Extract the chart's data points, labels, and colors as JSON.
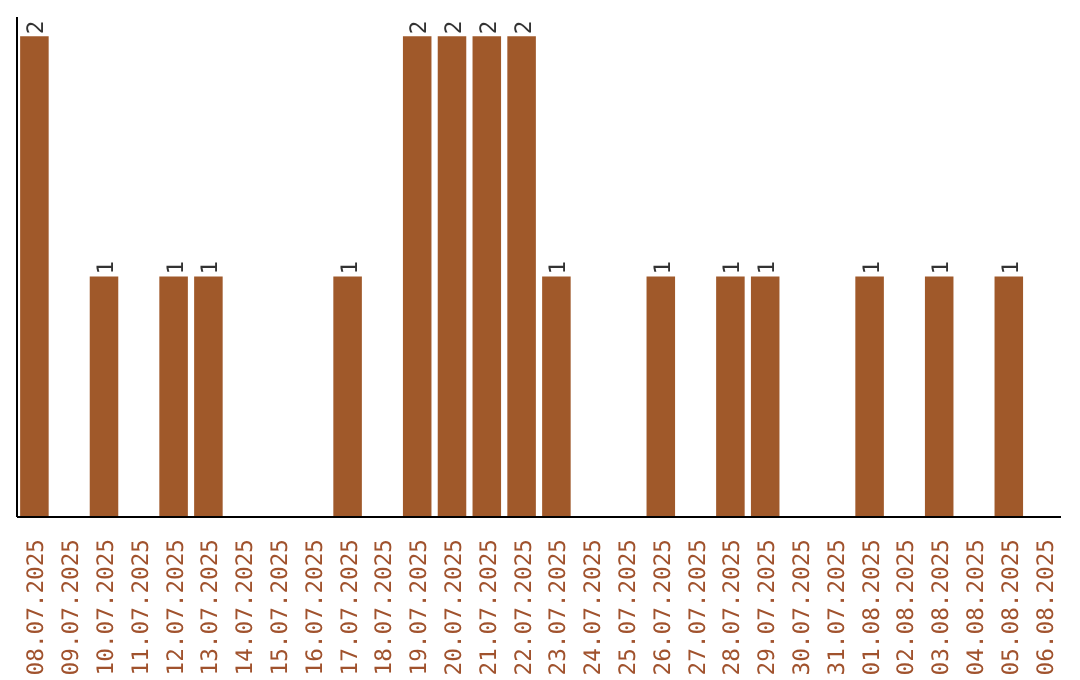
{
  "chart_data": {
    "type": "bar",
    "relative": false,
    "categories": [
      "08.07.2025",
      "09.07.2025",
      "10.07.2025",
      "11.07.2025",
      "12.07.2025",
      "13.07.2025",
      "14.07.2025",
      "15.07.2025",
      "16.07.2025",
      "17.07.2025",
      "18.07.2025",
      "19.07.2025",
      "20.07.2025",
      "21.07.2025",
      "22.07.2025",
      "23.07.2025",
      "24.07.2025",
      "25.07.2025",
      "26.07.2025",
      "27.07.2025",
      "28.07.2025",
      "29.07.2025",
      "30.07.2025",
      "31.07.2025",
      "01.08.2025",
      "02.08.2025",
      "03.08.2025",
      "04.08.2025",
      "05.08.2025",
      "06.08.2025"
    ],
    "values": [
      2,
      0,
      1,
      0,
      1,
      1,
      0,
      0,
      0,
      1,
      0,
      2,
      2,
      2,
      2,
      1,
      0,
      0,
      1,
      0,
      1,
      1,
      0,
      0,
      1,
      0,
      1,
      0,
      1,
      0
    ],
    "value_labels": [
      "2",
      null,
      "1",
      null,
      "1",
      "1",
      null,
      null,
      null,
      "1",
      null,
      "2",
      "2",
      "2",
      "2",
      "1",
      null,
      null,
      "1",
      null,
      "1",
      "1",
      null,
      null,
      "1",
      null,
      "1",
      null,
      "1",
      null
    ],
    "color": "#a0592a"
  }
}
